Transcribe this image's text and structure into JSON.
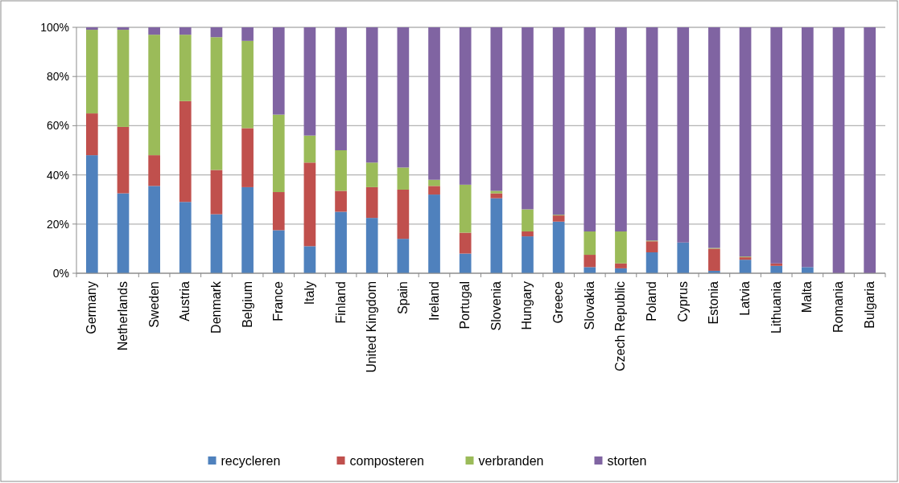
{
  "chart_data": {
    "type": "bar",
    "stacked": true,
    "categories": [
      "Germany",
      "Netherlands",
      "Sweden",
      "Austria",
      "Denmark",
      "Belgium",
      "France",
      "Italy",
      "Finland",
      "United Kingdom",
      "Spain",
      "Ireland",
      "Portugal",
      "Slovenia",
      "Hungary",
      "Greece",
      "Slovakia",
      "Czech Republic",
      "Poland",
      "Cyprus",
      "Estonia",
      "Latvia",
      "Lithuania",
      "Malta",
      "Romania",
      "Bulgaria"
    ],
    "series": [
      {
        "name": "recycleren",
        "color": "#4f81bd",
        "values": [
          48,
          32.5,
          35.5,
          29,
          24,
          35,
          17.5,
          11,
          25,
          22.5,
          14,
          32,
          8,
          30.5,
          15,
          21,
          2.5,
          2,
          8.5,
          12.5,
          1,
          5.5,
          3,
          2.5,
          0,
          0
        ]
      },
      {
        "name": "composteren",
        "color": "#c0504d",
        "values": [
          17,
          27,
          12.5,
          41,
          18,
          24,
          15.5,
          34,
          8.5,
          12.5,
          20,
          3.5,
          8.5,
          2,
          2,
          2.5,
          5,
          2,
          4.5,
          0,
          9,
          1,
          1,
          0,
          0,
          0
        ]
      },
      {
        "name": "verbranden",
        "color": "#9bbb59",
        "values": [
          34,
          39.5,
          49,
          27,
          54,
          35.5,
          31.5,
          11,
          16.5,
          10,
          9,
          2.5,
          19.5,
          1,
          9,
          0.3,
          9.5,
          13,
          0.3,
          0,
          0.3,
          0.3,
          0,
          0,
          0,
          0
        ]
      },
      {
        "name": "storten",
        "color": "#8064a2",
        "values": [
          1,
          1,
          3,
          3,
          4,
          5.5,
          35.5,
          44,
          50,
          55,
          57,
          62,
          64,
          66.5,
          74,
          76.2,
          83,
          83,
          86.7,
          87.5,
          89.7,
          93.2,
          96,
          97.5,
          100,
          100
        ]
      }
    ],
    "ylim": [
      0,
      100
    ],
    "yticks": [
      {
        "value": 0,
        "label": "0%"
      },
      {
        "value": 20,
        "label": "20%"
      },
      {
        "value": 40,
        "label": "40%"
      },
      {
        "value": 60,
        "label": "60%"
      },
      {
        "value": 80,
        "label": "80%"
      },
      {
        "value": 100,
        "label": "100%"
      }
    ],
    "grid": "y",
    "legend": "bottom"
  }
}
